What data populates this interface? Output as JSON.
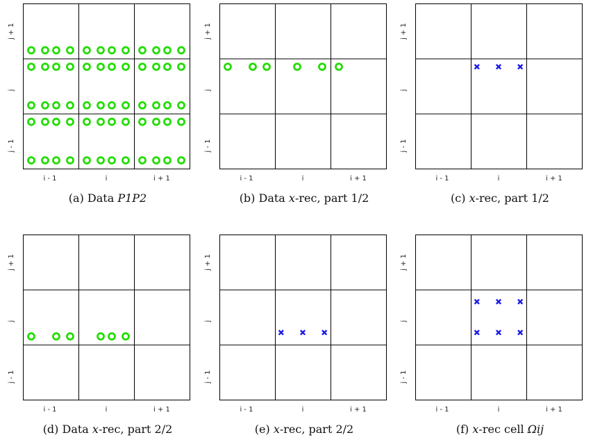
{
  "col_ticks": [
    "i - 1",
    "i",
    "i + 1"
  ],
  "row_ticks": [
    "j + 1",
    "j",
    "j - 1"
  ],
  "colors": {
    "circle": "#22dd00",
    "cross": "#1a1ae6",
    "grid": "#000000"
  },
  "panels": [
    {
      "caption": {
        "label": "(a)",
        "text": "Data ",
        "math": "P1P2"
      },
      "circles": [
        [
          0.15,
          0.85
        ],
        [
          0.4,
          0.85
        ],
        [
          0.6,
          0.85
        ],
        [
          0.85,
          0.85
        ],
        [
          1.15,
          0.85
        ],
        [
          1.4,
          0.85
        ],
        [
          1.6,
          0.85
        ],
        [
          1.85,
          0.85
        ],
        [
          2.15,
          0.85
        ],
        [
          2.4,
          0.85
        ],
        [
          2.6,
          0.85
        ],
        [
          2.85,
          0.85
        ],
        [
          0.15,
          1.15
        ],
        [
          0.4,
          1.15
        ],
        [
          0.6,
          1.15
        ],
        [
          0.85,
          1.15
        ],
        [
          1.15,
          1.15
        ],
        [
          1.4,
          1.15
        ],
        [
          1.6,
          1.15
        ],
        [
          1.85,
          1.15
        ],
        [
          2.15,
          1.15
        ],
        [
          2.4,
          1.15
        ],
        [
          2.6,
          1.15
        ],
        [
          2.85,
          1.15
        ],
        [
          0.15,
          1.85
        ],
        [
          0.4,
          1.85
        ],
        [
          0.6,
          1.85
        ],
        [
          0.85,
          1.85
        ],
        [
          1.15,
          1.85
        ],
        [
          1.4,
          1.85
        ],
        [
          1.6,
          1.85
        ],
        [
          1.85,
          1.85
        ],
        [
          2.15,
          1.85
        ],
        [
          2.4,
          1.85
        ],
        [
          2.6,
          1.85
        ],
        [
          2.85,
          1.85
        ],
        [
          0.15,
          2.15
        ],
        [
          0.4,
          2.15
        ],
        [
          0.6,
          2.15
        ],
        [
          0.85,
          2.15
        ],
        [
          1.15,
          2.15
        ],
        [
          1.4,
          2.15
        ],
        [
          1.6,
          2.15
        ],
        [
          1.85,
          2.15
        ],
        [
          2.15,
          2.15
        ],
        [
          2.4,
          2.15
        ],
        [
          2.6,
          2.15
        ],
        [
          2.85,
          2.15
        ],
        [
          0.15,
          2.85
        ],
        [
          0.4,
          2.85
        ],
        [
          0.6,
          2.85
        ],
        [
          0.85,
          2.85
        ],
        [
          1.15,
          2.85
        ],
        [
          1.4,
          2.85
        ],
        [
          1.6,
          2.85
        ],
        [
          1.85,
          2.85
        ],
        [
          2.15,
          2.85
        ],
        [
          2.4,
          2.85
        ],
        [
          2.6,
          2.85
        ],
        [
          2.85,
          2.85
        ]
      ],
      "crosses": []
    },
    {
      "caption": {
        "label": "(b)",
        "text": "Data ",
        "math": "x",
        "rest": "-rec, part 1/2"
      },
      "circles": [
        [
          0.15,
          1.15
        ],
        [
          0.6,
          1.15
        ],
        [
          0.85,
          1.15
        ],
        [
          1.4,
          1.15
        ],
        [
          1.85,
          1.15
        ],
        [
          2.15,
          1.15
        ]
      ],
      "crosses": []
    },
    {
      "caption": {
        "label": "(c)",
        "text": "",
        "math": "x",
        "rest": "-rec, part 1/2"
      },
      "circles": [],
      "crosses": [
        [
          1.11,
          1.15
        ],
        [
          1.5,
          1.15
        ],
        [
          1.89,
          1.15
        ]
      ]
    },
    {
      "caption": {
        "label": "(d)",
        "text": "Data ",
        "math": "x",
        "rest": "-rec, part 2/2"
      },
      "circles": [
        [
          0.15,
          1.85
        ],
        [
          0.6,
          1.85
        ],
        [
          0.85,
          1.85
        ],
        [
          1.4,
          1.85
        ],
        [
          1.6,
          1.85
        ],
        [
          1.85,
          1.85
        ]
      ],
      "crosses": []
    },
    {
      "caption": {
        "label": "(e)",
        "text": "",
        "math": "x",
        "rest": "-rec, part 2/2"
      },
      "circles": [],
      "crosses": [
        [
          1.11,
          1.78
        ],
        [
          1.5,
          1.78
        ],
        [
          1.89,
          1.78
        ]
      ]
    },
    {
      "caption": {
        "label": "(f)",
        "text": "",
        "math": "x",
        "rest": "-rec cell ",
        "math2": "Ωij"
      },
      "circles": [],
      "crosses": [
        [
          1.11,
          1.78
        ],
        [
          1.5,
          1.78
        ],
        [
          1.89,
          1.78
        ],
        [
          1.11,
          1.22
        ],
        [
          1.5,
          1.22
        ],
        [
          1.89,
          1.22
        ]
      ]
    }
  ]
}
